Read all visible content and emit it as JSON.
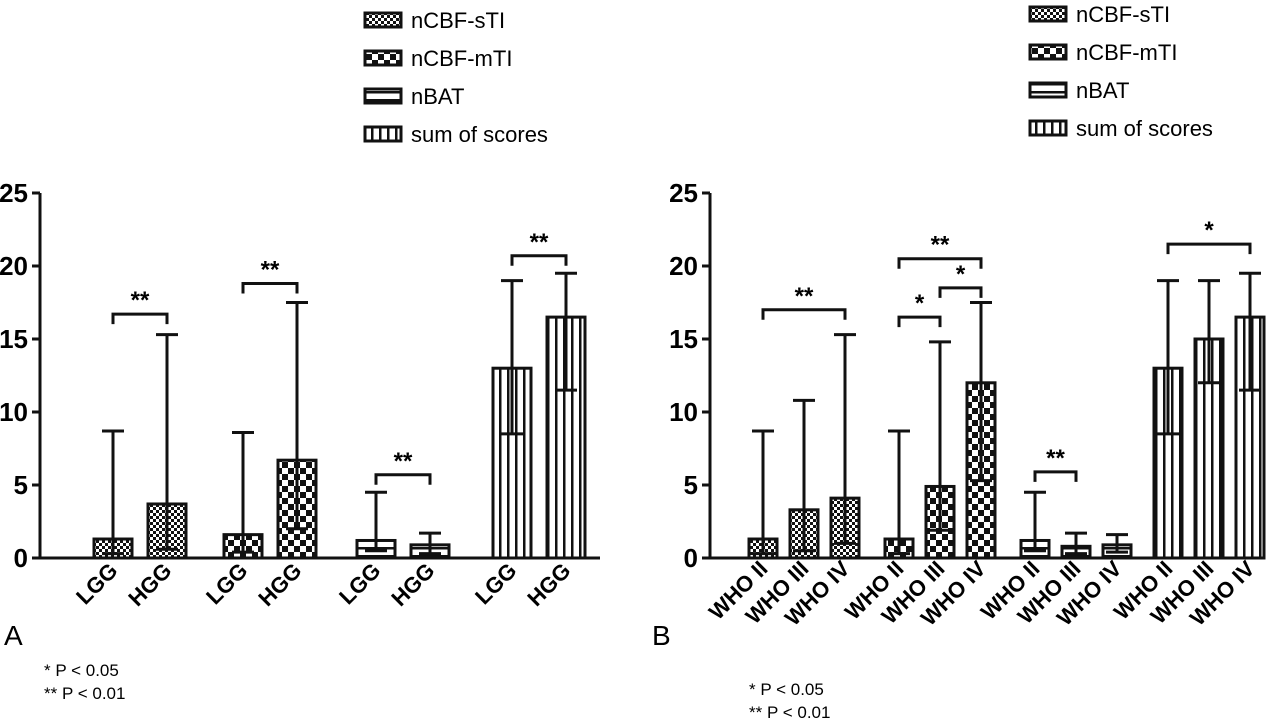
{
  "chart_data": [
    {
      "type": "bar",
      "panel_label": "A",
      "ylim": [
        0,
        25
      ],
      "yticks": [
        0,
        5,
        10,
        15,
        20,
        25
      ],
      "legend": [
        "nCBF-sTI",
        "nCBF-mTI",
        "nBAT",
        "sum of scores"
      ],
      "legend_placement": "top",
      "groups": [
        {
          "series": "nCBF-sTI",
          "pattern": "fine-check",
          "categories": [
            "LGG",
            "HGG"
          ],
          "values": [
            1.3,
            3.7
          ],
          "error_low": [
            0.3,
            0.6
          ],
          "error_high": [
            8.7,
            15.3
          ]
        },
        {
          "series": "nCBF-mTI",
          "pattern": "coarse-check",
          "categories": [
            "LGG",
            "HGG"
          ],
          "values": [
            1.6,
            6.7
          ],
          "error_low": [
            0.4,
            2.0
          ],
          "error_high": [
            8.6,
            17.5
          ]
        },
        {
          "series": "nBAT",
          "pattern": "horizontal-lines",
          "categories": [
            "LGG",
            "HGG"
          ],
          "values": [
            1.2,
            0.9
          ],
          "error_low": [
            0.5,
            0.3
          ],
          "error_high": [
            4.5,
            1.7
          ]
        },
        {
          "series": "sum of scores",
          "pattern": "vertical-lines",
          "categories": [
            "LGG",
            "HGG"
          ],
          "values": [
            13.0,
            16.5
          ],
          "error_low": [
            8.5,
            11.5
          ],
          "error_high": [
            19.0,
            19.5
          ]
        }
      ],
      "significance": [
        {
          "group": 0,
          "from": 0,
          "to": 1,
          "y": 16.7,
          "label": "**"
        },
        {
          "group": 1,
          "from": 0,
          "to": 1,
          "y": 18.8,
          "label": "**"
        },
        {
          "group": 2,
          "from": 0,
          "to": 1,
          "y": 5.7,
          "label": "**"
        },
        {
          "group": 3,
          "from": 0,
          "to": 1,
          "y": 20.7,
          "label": "**"
        }
      ],
      "notes": [
        "* P < 0.05",
        "** P < 0.01"
      ]
    },
    {
      "type": "bar",
      "panel_label": "B",
      "ylim": [
        0,
        25
      ],
      "yticks": [
        0,
        5,
        10,
        15,
        20,
        25
      ],
      "legend": [
        "nCBF-sTI",
        "nCBF-mTI",
        "nBAT",
        "sum of scores"
      ],
      "legend_placement": "top-right",
      "groups": [
        {
          "series": "nCBF-sTI",
          "pattern": "fine-check",
          "categories": [
            "WHO II",
            "WHO III",
            "WHO IV"
          ],
          "values": [
            1.3,
            3.3,
            4.1
          ],
          "error_low": [
            0.3,
            0.5,
            1.0
          ],
          "error_high": [
            8.7,
            10.8,
            15.3
          ]
        },
        {
          "series": "nCBF-mTI",
          "pattern": "coarse-check",
          "categories": [
            "WHO II",
            "WHO III",
            "WHO IV"
          ],
          "values": [
            1.3,
            4.9,
            12.0
          ],
          "error_low": [
            0.3,
            1.9,
            5.3
          ],
          "error_high": [
            8.7,
            14.8,
            17.5
          ]
        },
        {
          "series": "nBAT",
          "pattern": "horizontal-lines",
          "categories": [
            "WHO II",
            "WHO III",
            "WHO IV"
          ],
          "values": [
            1.2,
            0.8,
            0.9
          ],
          "error_low": [
            0.5,
            0.3,
            0.4
          ],
          "error_high": [
            4.5,
            1.7,
            1.6
          ]
        },
        {
          "series": "sum of scores",
          "pattern": "vertical-lines",
          "categories": [
            "WHO II",
            "WHO III",
            "WHO IV"
          ],
          "values": [
            13.0,
            15.0,
            16.5
          ],
          "error_low": [
            8.5,
            12.0,
            11.5
          ],
          "error_high": [
            19.0,
            19.0,
            19.5
          ]
        }
      ],
      "significance": [
        {
          "group": 0,
          "from": 0,
          "to": 2,
          "y": 17.0,
          "label": "**"
        },
        {
          "group": 1,
          "from": 0,
          "to": 1,
          "y": 16.5,
          "label": "*"
        },
        {
          "group": 1,
          "from": 1,
          "to": 2,
          "y": 18.5,
          "label": "*"
        },
        {
          "group": 1,
          "from": 0,
          "to": 2,
          "y": 20.5,
          "label": "**"
        },
        {
          "group": 2,
          "from": 0,
          "to": 1,
          "y": 5.9,
          "label": "**"
        },
        {
          "group": 3,
          "from": 0,
          "to": 2,
          "y": 21.5,
          "label": "*"
        }
      ],
      "notes": [
        "* P < 0.05",
        "** P < 0.01"
      ]
    }
  ]
}
